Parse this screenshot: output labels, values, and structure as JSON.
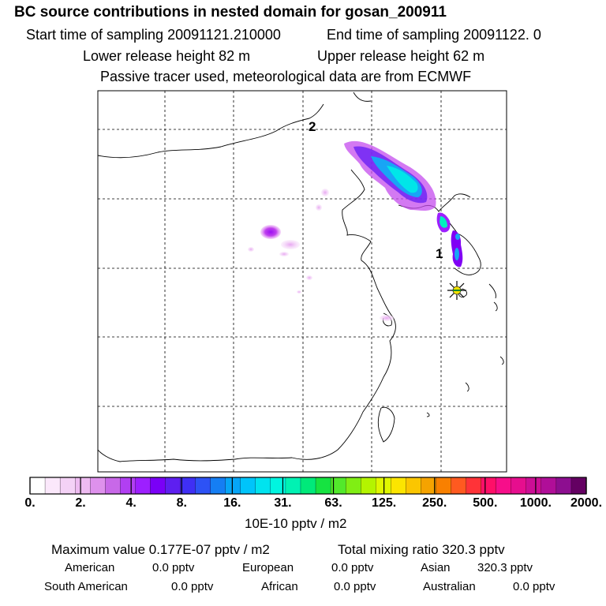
{
  "header": {
    "title": "BC  source contributions in nested domain for gosan_200911",
    "start_time": "Start time of sampling 20091121.210000",
    "end_time": "End time of sampling 20091122.     0",
    "lower_release": "Lower release height   82 m",
    "upper_release": "Upper release height   62 m",
    "tracer_note": "Passive tracer used, meteorological data are from ECMWF"
  },
  "map": {
    "label_1": "1",
    "label_2": "2",
    "receptor_marker": "star-marker"
  },
  "colorbar": {
    "colors": [
      "#ffffff",
      "#fbe8fb",
      "#f4d2f6",
      "#eebbf1",
      "#de91ec",
      "#c868e8",
      "#b13ff2",
      "#9d1fff",
      "#7a00f7",
      "#5e1ff0",
      "#3f2ff4",
      "#2d52f5",
      "#157ef3",
      "#06a5f7",
      "#00c4fa",
      "#00e3ef",
      "#00f5e0",
      "#00f2b3",
      "#00e97a",
      "#16e341",
      "#52e92b",
      "#80ee14",
      "#b4f400",
      "#dff700",
      "#fce500",
      "#fbc600",
      "#f5a300",
      "#f98000",
      "#ff5a20",
      "#ff3338",
      "#ff0f68",
      "#f70e8a",
      "#e60e8e",
      "#cc0e95",
      "#b00e98",
      "#8d0e90",
      "#640062"
    ],
    "ticks": [
      "0.",
      "2.",
      "4.",
      "8.",
      "16.",
      "31.",
      "63.",
      "125.",
      "250.",
      "500.",
      "1000.",
      "2000."
    ],
    "unit": "10E-10 pptv / m2"
  },
  "footer": {
    "max_value": "Maximum value  0.177E-07 pptv / m2",
    "total_mixing": "Total mixing ratio     320.3 pptv",
    "regions": [
      {
        "name": "American",
        "value": "0.0 pptv"
      },
      {
        "name": "European",
        "value": "0.0 pptv"
      },
      {
        "name": "Asian",
        "value": "320.3 pptv"
      },
      {
        "name": "South American",
        "value": "0.0 pptv"
      },
      {
        "name": "African",
        "value": "0.0 pptv"
      },
      {
        "name": "Australian",
        "value": "0.0 pptv"
      }
    ]
  }
}
